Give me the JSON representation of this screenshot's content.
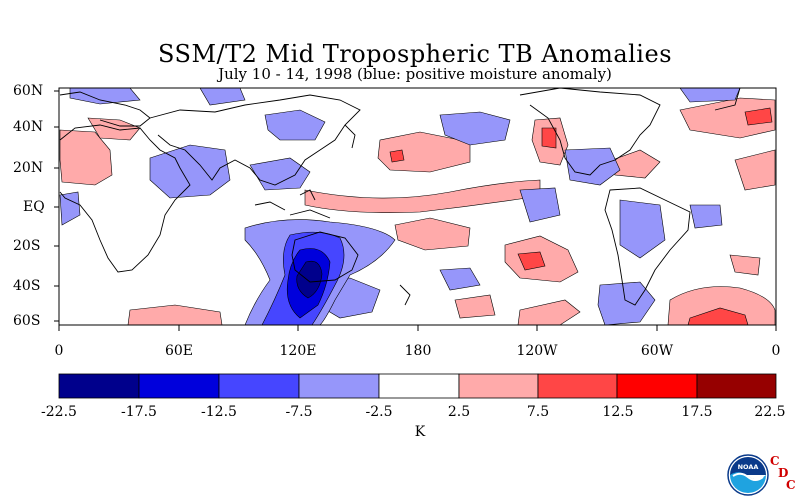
{
  "title": "SSM/T2 Mid Tropospheric TB Anomalies",
  "subtitle": "July 10 - 14, 1998 (blue: positive moisture anomaly)",
  "lat_labels": [
    "60N",
    "40N",
    "20N",
    "EQ",
    "20S",
    "40S",
    "60S"
  ],
  "lon_labels": [
    "0",
    "60E",
    "120E",
    "180",
    "120W",
    "60W",
    "0"
  ],
  "colorbar": {
    "unit": "K",
    "tick_labels": [
      "-22.5",
      "-17.5",
      "-12.5",
      "-7.5",
      "-2.5",
      "2.5",
      "7.5",
      "12.5",
      "17.5",
      "22.5"
    ],
    "colors": [
      "#00008c",
      "#0000dc",
      "#4646ff",
      "#9696fa",
      "#ffffff",
      "#ffaaaa",
      "#ff4646",
      "#ff0000",
      "#960000"
    ]
  },
  "logos": {
    "noaa": "NOAA",
    "cdc": [
      "C",
      "D",
      "C"
    ]
  }
}
